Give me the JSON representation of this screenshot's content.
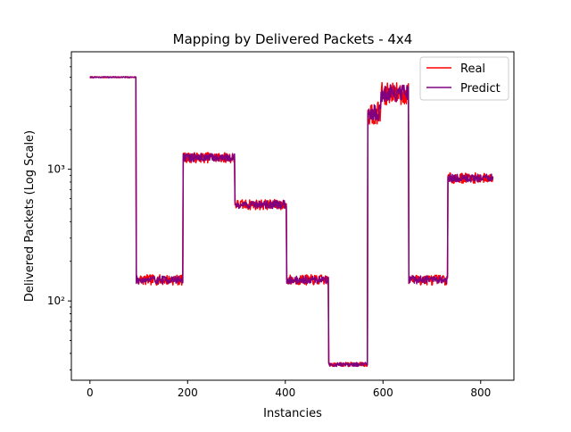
{
  "chart_data": {
    "type": "line",
    "title": "Mapping by Delivered Packets - 4x4",
    "xlabel": "Instancies",
    "ylabel": "Delivered Packets (Log Scale)",
    "xlim": [
      -38,
      868
    ],
    "ylim": [
      25,
      7800
    ],
    "yscale": "log",
    "grid": false,
    "legend_position": "top-right",
    "x_ticks": [
      0,
      200,
      400,
      600,
      800
    ],
    "x_tick_labels": [
      "0",
      "200",
      "400",
      "600",
      "800"
    ],
    "y_ticks": [
      100,
      1000
    ],
    "y_tick_labels": [
      "10²",
      "10³"
    ],
    "segments": [
      {
        "start": 0,
        "end": 94,
        "level": 5000
      },
      {
        "start": 95,
        "end": 190,
        "level": 145
      },
      {
        "start": 191,
        "end": 296,
        "level": 1230
      },
      {
        "start": 297,
        "end": 402,
        "level": 540
      },
      {
        "start": 403,
        "end": 488,
        "level": 145
      },
      {
        "start": 489,
        "end": 568,
        "level": 33
      },
      {
        "start": 569,
        "end": 595,
        "level": 2700
      },
      {
        "start": 596,
        "end": 652,
        "level": 3800
      },
      {
        "start": 653,
        "end": 732,
        "level": 145
      },
      {
        "start": 733,
        "end": 825,
        "level": 860
      }
    ],
    "series": [
      {
        "name": "Real",
        "color": "#ff0000",
        "noise": 0.09,
        "seed": 7
      },
      {
        "name": "Predict",
        "color": "#800080",
        "noise": 0.07,
        "seed": 19
      }
    ]
  }
}
